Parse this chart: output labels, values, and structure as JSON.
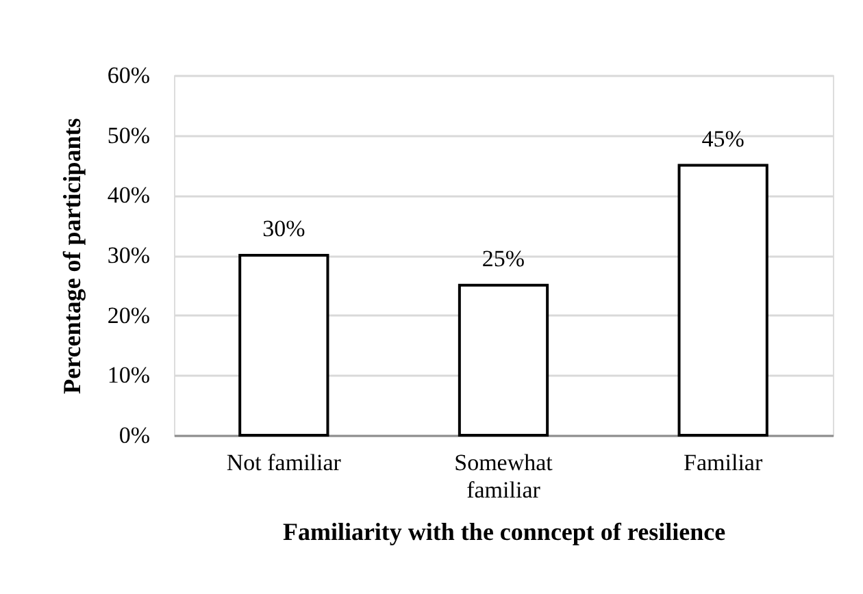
{
  "chart_data": {
    "type": "bar",
    "xlabel": "Familiarity with the conncept of resilience",
    "ylabel": "Percentage of participants",
    "categories": [
      "Not familiar",
      "Somewhat familiar",
      "Familiar"
    ],
    "values": [
      30,
      25,
      45
    ],
    "color": "#ffffff",
    "value_labels": [
      "30%",
      "25%",
      "45%"
    ],
    "ylim": [
      0,
      60
    ],
    "yticks": [
      {
        "value": 0,
        "label": "0%"
      },
      {
        "value": 10,
        "label": "10%"
      },
      {
        "value": 20,
        "label": "20%"
      },
      {
        "value": 30,
        "label": "30%"
      },
      {
        "value": 40,
        "label": "40%"
      },
      {
        "value": 50,
        "label": "50%"
      },
      {
        "value": 60,
        "label": "60%"
      }
    ],
    "grid": "y"
  }
}
